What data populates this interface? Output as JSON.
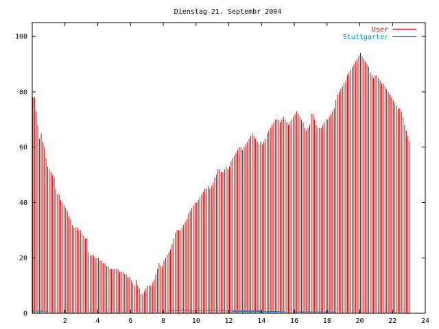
{
  "chart_data": {
    "type": "bar",
    "title": "Dienstag 21. Septembr 2004",
    "xlabel": "",
    "ylabel": "",
    "xlim": [
      0,
      24
    ],
    "ylim": [
      0,
      105
    ],
    "x_ticks": [
      2,
      4,
      6,
      8,
      10,
      12,
      14,
      16,
      18,
      20,
      22,
      24
    ],
    "y_ticks": [
      0,
      20,
      40,
      60,
      80,
      100
    ],
    "grid": false,
    "legend_position": "top-right",
    "x_step": 0.1,
    "series": [
      {
        "name": "User",
        "color": "#cc0000",
        "x_start": 0.0,
        "values": [
          78,
          78,
          73,
          68,
          63,
          65,
          62,
          60,
          56,
          53,
          52,
          51,
          50,
          49,
          45,
          43,
          43,
          41,
          40,
          39,
          38,
          37,
          35,
          34,
          32,
          31,
          31,
          31,
          30,
          30,
          29,
          28,
          27,
          27,
          22,
          21,
          21,
          21,
          20,
          20,
          20,
          19,
          19,
          18,
          18,
          17,
          17,
          16,
          16,
          16,
          16,
          16,
          16,
          15,
          15,
          15,
          14,
          14,
          13,
          13,
          12,
          11,
          10,
          12,
          10,
          9,
          7,
          7,
          8,
          9,
          10,
          10,
          10,
          11,
          12,
          14,
          16,
          18,
          17,
          17,
          19,
          20,
          21,
          22,
          23,
          25,
          27,
          29,
          30,
          30,
          30,
          31,
          32,
          33,
          34,
          36,
          37,
          38,
          39,
          40,
          40,
          41,
          42,
          43,
          44,
          45,
          45,
          46,
          45,
          46,
          47,
          49,
          50,
          52,
          52,
          51,
          51,
          52,
          53,
          52,
          53,
          55,
          56,
          57,
          58,
          59,
          60,
          60,
          59,
          60,
          61,
          62,
          63,
          64,
          65,
          64,
          63,
          62,
          61,
          62,
          61,
          62,
          63,
          65,
          66,
          67,
          68,
          69,
          70,
          70,
          70,
          69,
          70,
          71,
          70,
          69,
          68,
          69,
          70,
          71,
          72,
          73,
          72,
          71,
          70,
          69,
          67,
          66,
          67,
          68,
          72,
          72,
          70,
          68,
          67,
          67,
          67,
          68,
          69,
          70,
          70,
          71,
          72,
          73,
          74,
          77,
          79,
          80,
          81,
          82,
          83,
          84,
          86,
          87,
          88,
          89,
          90,
          91,
          92,
          93,
          94,
          93,
          92,
          91,
          90,
          89,
          87,
          86,
          85,
          86,
          86,
          85,
          84,
          83,
          83,
          82,
          81,
          80,
          79,
          78,
          77,
          76,
          75,
          74,
          74,
          73,
          71,
          68,
          66,
          64,
          62
        ]
      },
      {
        "name": "Stuttgarter",
        "color": "#0088cc",
        "segments": [
          {
            "x1": 0.0,
            "x2": 0.9,
            "value": 0.7
          },
          {
            "x1": 8.3,
            "x2": 14.0,
            "value": 0.9
          },
          {
            "x1": 12.2,
            "x2": 15.4,
            "value": 0.6
          },
          {
            "x1": 16.0,
            "x2": 18.5,
            "value": 0.5
          }
        ]
      }
    ]
  }
}
